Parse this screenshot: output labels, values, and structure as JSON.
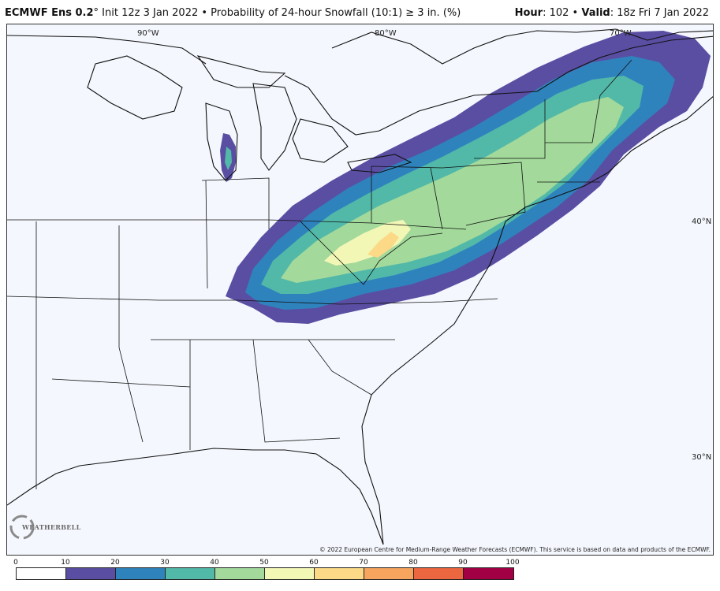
{
  "header": {
    "model": "ECMWF Ens 0.2",
    "degree": "°",
    "subtitle": " Init 12z 3 Jan 2022 • Probability of 24-hour Snowfall (10:1) ≥ 3 in. (%)",
    "hour_label": "Hour",
    "hour_value": ": 102 • ",
    "valid_label": "Valid",
    "valid_value": ": 18z Fri 7 Jan 2022"
  },
  "map": {
    "lon_labels": [
      "90°W",
      "80°W",
      "70°W"
    ],
    "lat_labels": [
      "40°N",
      "30°N"
    ],
    "copyright": "© 2022 European Centre for Medium-Range Weather Forecasts (ECMWF). This service is based on data and products of the ECMWF.",
    "logo": "WEATHERBELL"
  },
  "colorbar": {
    "ticks": [
      "0",
      "10",
      "20",
      "30",
      "40",
      "50",
      "60",
      "70",
      "80",
      "90",
      "100"
    ],
    "colors": [
      "#ffffff",
      "#5a4ea3",
      "#2f83bd",
      "#52b9a8",
      "#a3d99b",
      "#f3f7b6",
      "#fbd987",
      "#f7a45f",
      "#ec6740",
      "#a20044"
    ]
  }
}
